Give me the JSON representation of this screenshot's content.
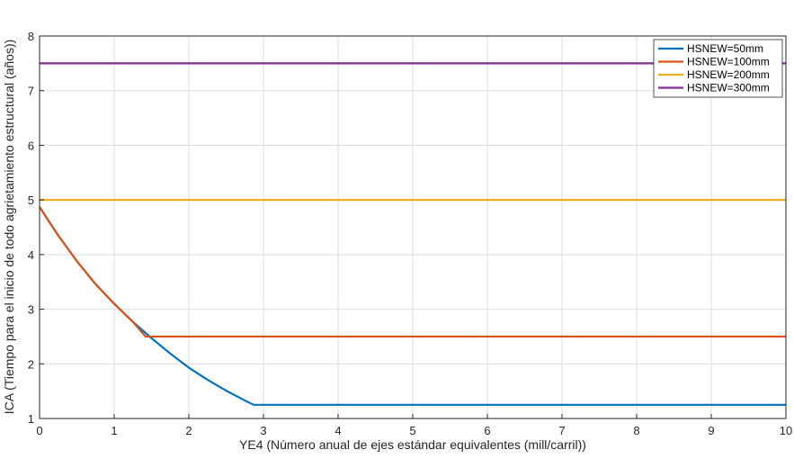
{
  "chart_data": {
    "type": "line",
    "xlabel": "YE4 (Número anual de ejes estándar equivalentes (mill/carril))",
    "ylabel": "ICA (Tiempo para el inicio de todo agrietamiento estructural (años))",
    "xlim": [
      0,
      10
    ],
    "ylim": [
      1,
      8
    ],
    "xticks": [
      0,
      1,
      2,
      3,
      4,
      5,
      6,
      7,
      8,
      9,
      10
    ],
    "yticks": [
      1,
      2,
      3,
      4,
      5,
      6,
      7,
      8
    ],
    "grid": true,
    "legend_position": "top-right",
    "series": [
      {
        "name": "HSNEW=50mm",
        "color": "#0072BD",
        "x": [
          0,
          0.25,
          0.5,
          0.75,
          1.0,
          1.25,
          1.5,
          1.75,
          2.0,
          2.25,
          2.5,
          2.75,
          2.87,
          10
        ],
        "y": [
          4.87,
          4.35,
          3.88,
          3.46,
          3.1,
          2.77,
          2.47,
          2.19,
          1.93,
          1.71,
          1.51,
          1.33,
          1.25,
          1.25
        ]
      },
      {
        "name": "HSNEW=100mm",
        "color": "#D95319",
        "x": [
          0,
          0.25,
          0.5,
          0.75,
          1.0,
          1.25,
          1.42,
          10
        ],
        "y": [
          4.87,
          4.35,
          3.88,
          3.46,
          3.1,
          2.77,
          2.5,
          2.5
        ]
      },
      {
        "name": "HSNEW=200mm",
        "color": "#EDB120",
        "x": [
          0,
          10
        ],
        "y": [
          5.0,
          5.0
        ]
      },
      {
        "name": "HSNEW=300mm",
        "color": "#7E2F8E",
        "x": [
          0,
          10
        ],
        "y": [
          7.5,
          7.5
        ]
      }
    ]
  }
}
